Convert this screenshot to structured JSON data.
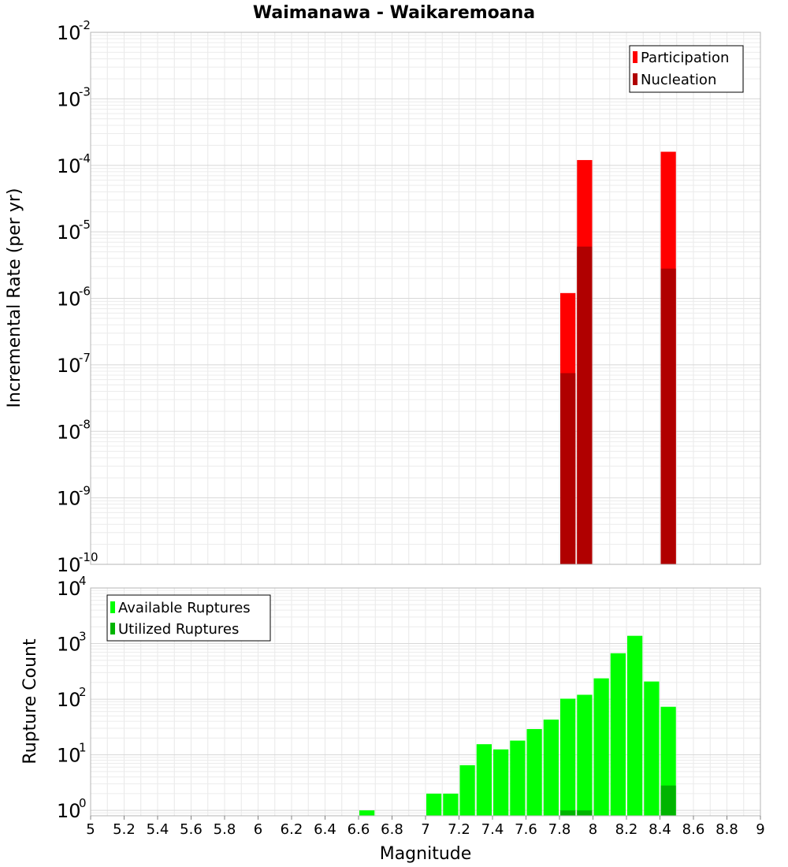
{
  "chart_data": [
    {
      "type": "bar",
      "title": "Waimanawa - Waikaremoana",
      "xlabel": "Magnitude",
      "ylabel": "Incremental Rate (per yr)",
      "yscale": "log",
      "ylim": [
        1e-10,
        0.01
      ],
      "xlim": [
        5,
        9
      ],
      "bin_width": 0.1,
      "legend_position": "top-right",
      "grid": true,
      "series": [
        {
          "name": "Participation",
          "color": "#ff0000",
          "points": [
            {
              "x": 7.85,
              "y": 1.2e-06
            },
            {
              "x": 7.95,
              "y": 0.00012
            },
            {
              "x": 8.45,
              "y": 0.00016
            }
          ]
        },
        {
          "name": "Nucleation",
          "color": "#b00000",
          "points": [
            {
              "x": 7.85,
              "y": 7.5e-08
            },
            {
              "x": 7.95,
              "y": 6e-06
            },
            {
              "x": 8.45,
              "y": 2.8e-06
            }
          ]
        }
      ]
    },
    {
      "type": "bar",
      "title": "",
      "xlabel": "Magnitude",
      "ylabel": "Rupture Count",
      "yscale": "log",
      "ylim": [
        0.8,
        10000.0
      ],
      "xlim": [
        5,
        9
      ],
      "bin_width": 0.1,
      "legend_position": "top-left",
      "grid": true,
      "series": [
        {
          "name": "Available Ruptures",
          "color": "#00ff00",
          "points": [
            {
              "x": 6.65,
              "y": 1
            },
            {
              "x": 7.05,
              "y": 2
            },
            {
              "x": 7.15,
              "y": 2
            },
            {
              "x": 7.25,
              "y": 6.5
            },
            {
              "x": 7.35,
              "y": 15.5
            },
            {
              "x": 7.45,
              "y": 12.5
            },
            {
              "x": 7.55,
              "y": 18
            },
            {
              "x": 7.65,
              "y": 29
            },
            {
              "x": 7.75,
              "y": 43
            },
            {
              "x": 7.85,
              "y": 102
            },
            {
              "x": 7.95,
              "y": 120
            },
            {
              "x": 8.05,
              "y": 237
            },
            {
              "x": 8.15,
              "y": 670
            },
            {
              "x": 8.25,
              "y": 1380
            },
            {
              "x": 8.35,
              "y": 208
            },
            {
              "x": 8.45,
              "y": 73
            }
          ]
        },
        {
          "name": "Utilized Ruptures",
          "color": "#00b400",
          "points": [
            {
              "x": 7.85,
              "y": 1
            },
            {
              "x": 7.95,
              "y": 1
            },
            {
              "x": 8.45,
              "y": 2.8
            }
          ]
        }
      ]
    }
  ],
  "x_ticks": [
    "5",
    "5.2",
    "5.4",
    "5.6",
    "5.8",
    "6",
    "6.2",
    "6.4",
    "6.6",
    "6.8",
    "7",
    "7.2",
    "7.4",
    "7.6",
    "7.8",
    "8",
    "8.2",
    "8.4",
    "8.6",
    "8.8",
    "9"
  ],
  "top_y_ticks": [
    {
      "base": "10",
      "exp": "-2",
      "value": 0.01
    },
    {
      "base": "10",
      "exp": "-3",
      "value": 0.001
    },
    {
      "base": "10",
      "exp": "-4",
      "value": 0.0001
    },
    {
      "base": "10",
      "exp": "-5",
      "value": 1e-05
    },
    {
      "base": "10",
      "exp": "-6",
      "value": 1e-06
    },
    {
      "base": "10",
      "exp": "-7",
      "value": 1e-07
    },
    {
      "base": "10",
      "exp": "-8",
      "value": 1e-08
    },
    {
      "base": "10",
      "exp": "-9",
      "value": 1e-09
    },
    {
      "base": "10",
      "exp": "-10",
      "value": 1e-10
    }
  ],
  "bottom_y_ticks": [
    {
      "base": "10",
      "exp": "4",
      "value": 10000.0
    },
    {
      "base": "10",
      "exp": "3",
      "value": 1000.0
    },
    {
      "base": "10",
      "exp": "2",
      "value": 100.0
    },
    {
      "base": "10",
      "exp": "1",
      "value": 10.0
    },
    {
      "base": "10",
      "exp": "0",
      "value": 1
    }
  ]
}
